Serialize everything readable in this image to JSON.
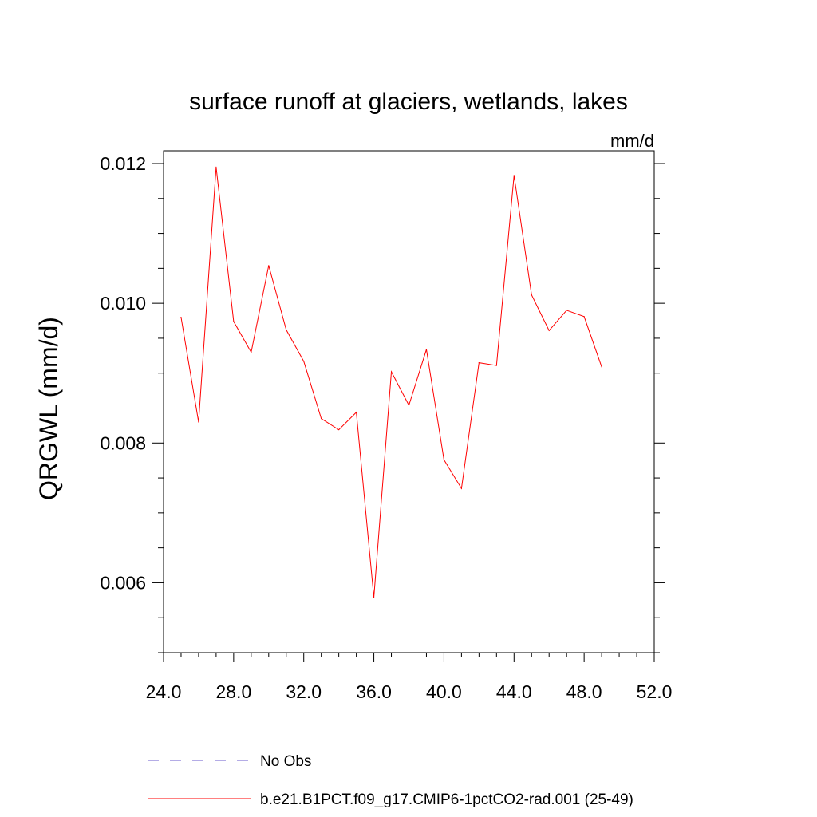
{
  "chart_data": {
    "type": "line",
    "title": "surface runoff at glaciers, wetlands, lakes",
    "units": "mm/d",
    "ylabel": "QRGWL  (mm/d)",
    "xlabel": "",
    "xlim": [
      24,
      52
    ],
    "ylim": [
      0.005,
      0.0122
    ],
    "x_ticks": [
      24,
      28,
      32,
      36,
      40,
      44,
      48,
      52
    ],
    "x_tick_labels": [
      "24.0",
      "28.0",
      "32.0",
      "36.0",
      "40.0",
      "44.0",
      "48.0",
      "52.0"
    ],
    "y_ticks": [
      0.006,
      0.008,
      0.01,
      0.012
    ],
    "y_tick_labels": [
      "0.006",
      "0.008",
      "0.010",
      "0.012"
    ],
    "y_minor_step": 0.0005,
    "x_minor_step": 1,
    "grid": false,
    "legend_position": "bottom",
    "series": [
      {
        "name": "b.e21.B1PCT.f09_g17.CMIP6-1pctCO2-rad.001 (25-49)",
        "color": "#ff0000",
        "style": "solid",
        "x": [
          25,
          26,
          27,
          28,
          29,
          30,
          31,
          32,
          33,
          34,
          35,
          36,
          37,
          38,
          39,
          40,
          41,
          42,
          43,
          44,
          45,
          46,
          47,
          48,
          49
        ],
        "values": [
          0.0098,
          0.0083,
          0.01195,
          0.00974,
          0.0093,
          0.01054,
          0.00962,
          0.00917,
          0.00835,
          0.00819,
          0.00844,
          0.00579,
          0.00902,
          0.00854,
          0.00934,
          0.00776,
          0.00735,
          0.00915,
          0.00911,
          0.01183,
          0.01012,
          0.00961,
          0.0099,
          0.00981,
          0.00909
        ]
      },
      {
        "name": "No Obs",
        "color": "#6a5acd",
        "style": "dashed",
        "x": [],
        "values": []
      }
    ]
  }
}
